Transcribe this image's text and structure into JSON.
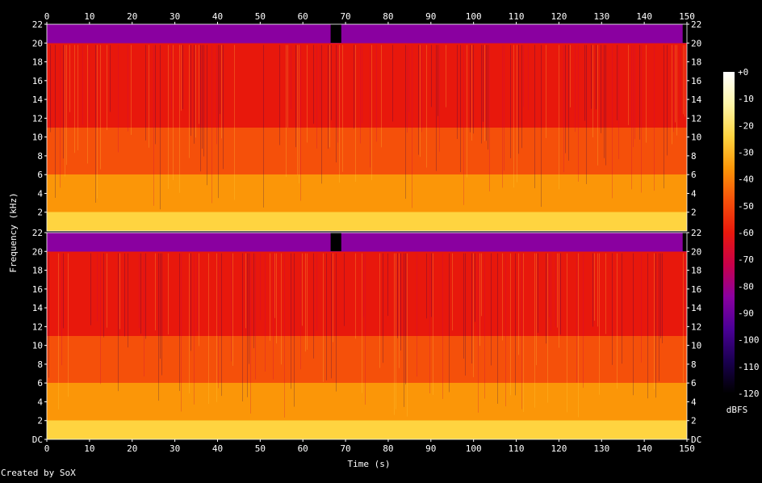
{
  "chart_data": {
    "type": "heatmap",
    "xlabel": "Time (s)",
    "ylabel": "Frequency (kHz)",
    "xlim": [
      0,
      150
    ],
    "ylim": [
      0,
      22
    ],
    "x_ticks": [
      "0",
      "10",
      "20",
      "30",
      "40",
      "50",
      "60",
      "70",
      "80",
      "90",
      "100",
      "110",
      "120",
      "130",
      "140",
      "150"
    ],
    "y_ticks_upper": [
      "2",
      "4",
      "6",
      "8",
      "10",
      "12",
      "14",
      "16",
      "18",
      "20",
      "22"
    ],
    "y_ticks_lower": [
      "DC",
      "2",
      "4",
      "6",
      "8",
      "10",
      "12",
      "14",
      "16",
      "18",
      "20",
      "22"
    ],
    "channels": 2,
    "colorbar": {
      "label": "dBFS",
      "range": [
        -120,
        0
      ],
      "ticks": [
        "+0",
        "-10",
        "-20",
        "-30",
        "-40",
        "-50",
        "-60",
        "-70",
        "-80",
        "-90",
        "-100",
        "-110",
        "-120"
      ],
      "colors": [
        "#000000",
        "#1a0050",
        "#4a0096",
        "#8a00a0",
        "#c8004a",
        "#e8180c",
        "#f5500a",
        "#fb9608",
        "#ffd440",
        "#fff6a8",
        "#ffffff"
      ]
    },
    "spectral_levels": [
      {
        "band_khz": [
          0,
          2
        ],
        "dbfs": -20
      },
      {
        "band_khz": [
          2,
          6
        ],
        "dbfs": -35
      },
      {
        "band_khz": [
          6,
          11
        ],
        "dbfs": -45
      },
      {
        "band_khz": [
          11,
          16
        ],
        "dbfs": -55
      },
      {
        "band_khz": [
          16,
          20
        ],
        "dbfs": -60
      },
      {
        "band_khz": [
          20,
          22
        ],
        "dbfs": -85
      }
    ],
    "silent_intervals_s": [
      [
        66.5,
        69
      ],
      [
        149,
        150
      ]
    ],
    "credit": "Created by SoX"
  }
}
